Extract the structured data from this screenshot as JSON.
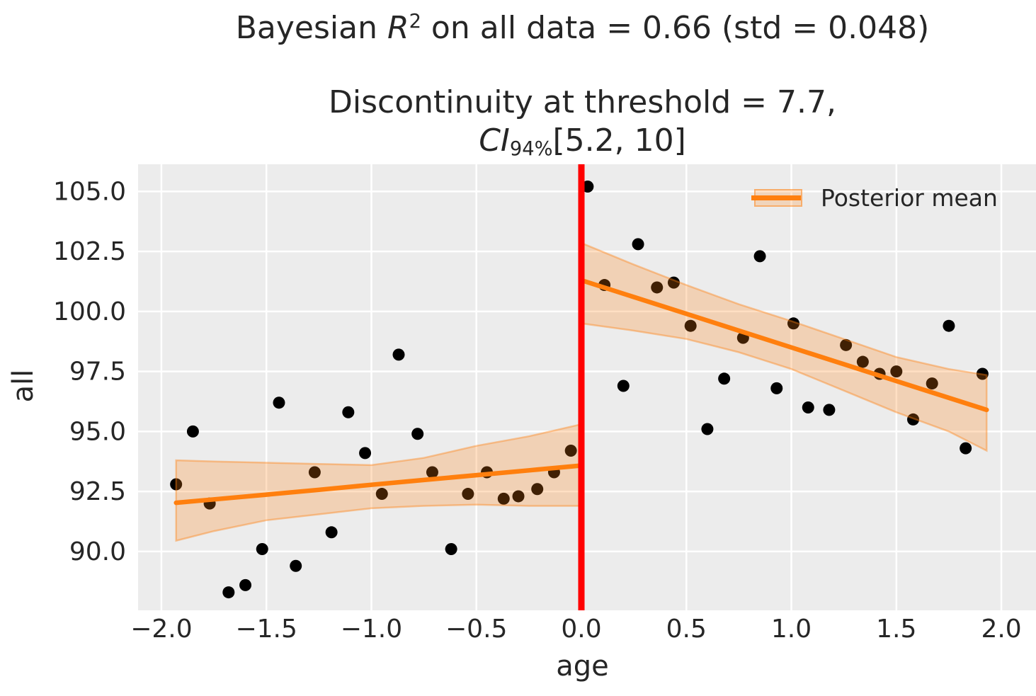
{
  "figure_title": {
    "prefix": "Bayesian ",
    "r": "R",
    "r_exp": "2",
    "suffix": " on all data = 0.66 (std = 0.048)"
  },
  "axes_title": {
    "line1": "Discontinuity at threshold = 7.7,",
    "ci": "CI",
    "ci_sub": "94%",
    "ci_range": "[5.2, 10]"
  },
  "chart_data": {
    "type": "scatter",
    "title": "Bayesian R^2 on all data = 0.66 (std = 0.048)",
    "subtitle": "Discontinuity at threshold = 7.7, CI_94% [5.2, 10]",
    "r_squared": 0.66,
    "r_squared_std": 0.048,
    "discontinuity_threshold": 7.7,
    "ci_94": [
      5.2,
      10
    ],
    "xlabel": "age",
    "ylabel": "all",
    "xlim": [
      -2.111,
      2.165
    ],
    "ylim": [
      87.55,
      106.13
    ],
    "grid": true,
    "xticks": [
      -2.0,
      -1.5,
      -1.0,
      -0.5,
      0.0,
      0.5,
      1.0,
      1.5,
      2.0
    ],
    "xtick_labels": [
      "−2.0",
      "−1.5",
      "−1.0",
      "−0.5",
      "0.0",
      "0.5",
      "1.0",
      "1.5",
      "2.0"
    ],
    "yticks": [
      90.0,
      92.5,
      95.0,
      97.5,
      100.0,
      102.5,
      105.0
    ],
    "ytick_labels": [
      "90.0",
      "92.5",
      "95.0",
      "97.5",
      "100.0",
      "102.5",
      "105.0"
    ],
    "legend": {
      "label": "Posterior mean",
      "position": "upper right"
    },
    "threshold_line": {
      "x": 0.0,
      "color": "#ff0000"
    },
    "points": [
      [
        -1.93,
        92.8
      ],
      [
        -1.85,
        95.0
      ],
      [
        -1.77,
        92.0
      ],
      [
        -1.68,
        88.3
      ],
      [
        -1.6,
        88.6
      ],
      [
        -1.52,
        90.1
      ],
      [
        -1.44,
        96.2
      ],
      [
        -1.36,
        89.4
      ],
      [
        -1.27,
        93.3
      ],
      [
        -1.19,
        90.8
      ],
      [
        -1.11,
        95.8
      ],
      [
        -1.03,
        94.1
      ],
      [
        -0.95,
        92.4
      ],
      [
        -0.87,
        98.2
      ],
      [
        -0.78,
        94.9
      ],
      [
        -0.71,
        93.3
      ],
      [
        -0.62,
        90.1
      ],
      [
        -0.54,
        92.4
      ],
      [
        -0.45,
        93.3
      ],
      [
        -0.37,
        92.2
      ],
      [
        -0.3,
        92.3
      ],
      [
        -0.21,
        92.6
      ],
      [
        -0.13,
        93.3
      ],
      [
        -0.05,
        94.2
      ],
      [
        0.03,
        105.2
      ],
      [
        0.11,
        101.1
      ],
      [
        0.2,
        96.9
      ],
      [
        0.27,
        102.8
      ],
      [
        0.36,
        101.0
      ],
      [
        0.44,
        101.2
      ],
      [
        0.52,
        99.4
      ],
      [
        0.6,
        95.1
      ],
      [
        0.68,
        97.2
      ],
      [
        0.77,
        98.9
      ],
      [
        0.85,
        102.3
      ],
      [
        0.93,
        96.8
      ],
      [
        1.01,
        99.5
      ],
      [
        1.08,
        96.0
      ],
      [
        1.18,
        95.9
      ],
      [
        1.26,
        98.6
      ],
      [
        1.34,
        97.9
      ],
      [
        1.42,
        97.4
      ],
      [
        1.5,
        97.5
      ],
      [
        1.58,
        95.5
      ],
      [
        1.67,
        97.0
      ],
      [
        1.75,
        99.4
      ],
      [
        1.83,
        94.3
      ],
      [
        1.91,
        97.4
      ]
    ],
    "posterior_left": {
      "x": [
        -1.93,
        -1.75,
        -1.5,
        -1.25,
        -1.0,
        -0.75,
        -0.5,
        -0.25,
        0.0
      ],
      "mean": [
        92.03,
        92.17,
        92.37,
        92.57,
        92.78,
        92.98,
        93.18,
        93.38,
        93.58
      ],
      "upper": [
        93.8,
        93.75,
        93.7,
        93.65,
        93.6,
        93.9,
        94.4,
        94.8,
        95.3
      ],
      "lower": [
        90.45,
        90.85,
        91.3,
        91.55,
        91.8,
        91.9,
        91.95,
        91.9,
        91.9
      ]
    },
    "posterior_right": {
      "x": [
        0.0,
        0.25,
        0.5,
        0.75,
        1.0,
        1.25,
        1.5,
        1.75,
        1.93
      ],
      "mean": [
        101.3,
        100.6,
        99.9,
        99.2,
        98.5,
        97.8,
        97.1,
        96.4,
        95.9
      ],
      "upper": [
        102.85,
        101.95,
        101.1,
        100.3,
        99.6,
        98.85,
        98.1,
        97.6,
        97.35
      ],
      "lower": [
        99.5,
        99.2,
        98.85,
        98.3,
        97.6,
        96.7,
        95.8,
        95.0,
        94.2
      ]
    },
    "colors": {
      "scatter": "#000000",
      "mean_line": "#ff7f0e",
      "band_fill": "rgba(255,127,14,0.25)",
      "band_edge": "rgba(255,127,14,0.4)",
      "threshold": "#ff0000",
      "axes_bg": "#ececec",
      "grid": "#ffffff",
      "text": "#262626"
    }
  }
}
